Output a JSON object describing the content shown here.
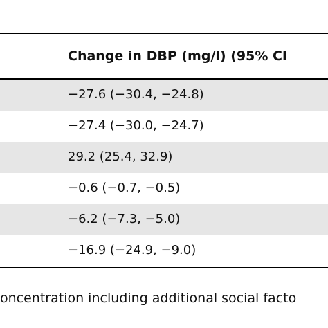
{
  "table": {
    "header": "Change in DBP (mg/l) (95% CI",
    "rows": [
      "−27.6 (−30.4, −24.8)",
      "−27.4 (−30.0, −24.7)",
      "29.2 (25.4, 32.9)",
      "−0.6 (−0.7, −0.5)",
      "−6.2 (−7.3, −5.0)",
      "−16.9 (−24.9, −9.0)"
    ]
  },
  "footnote": "oncentration including additional social facto"
}
